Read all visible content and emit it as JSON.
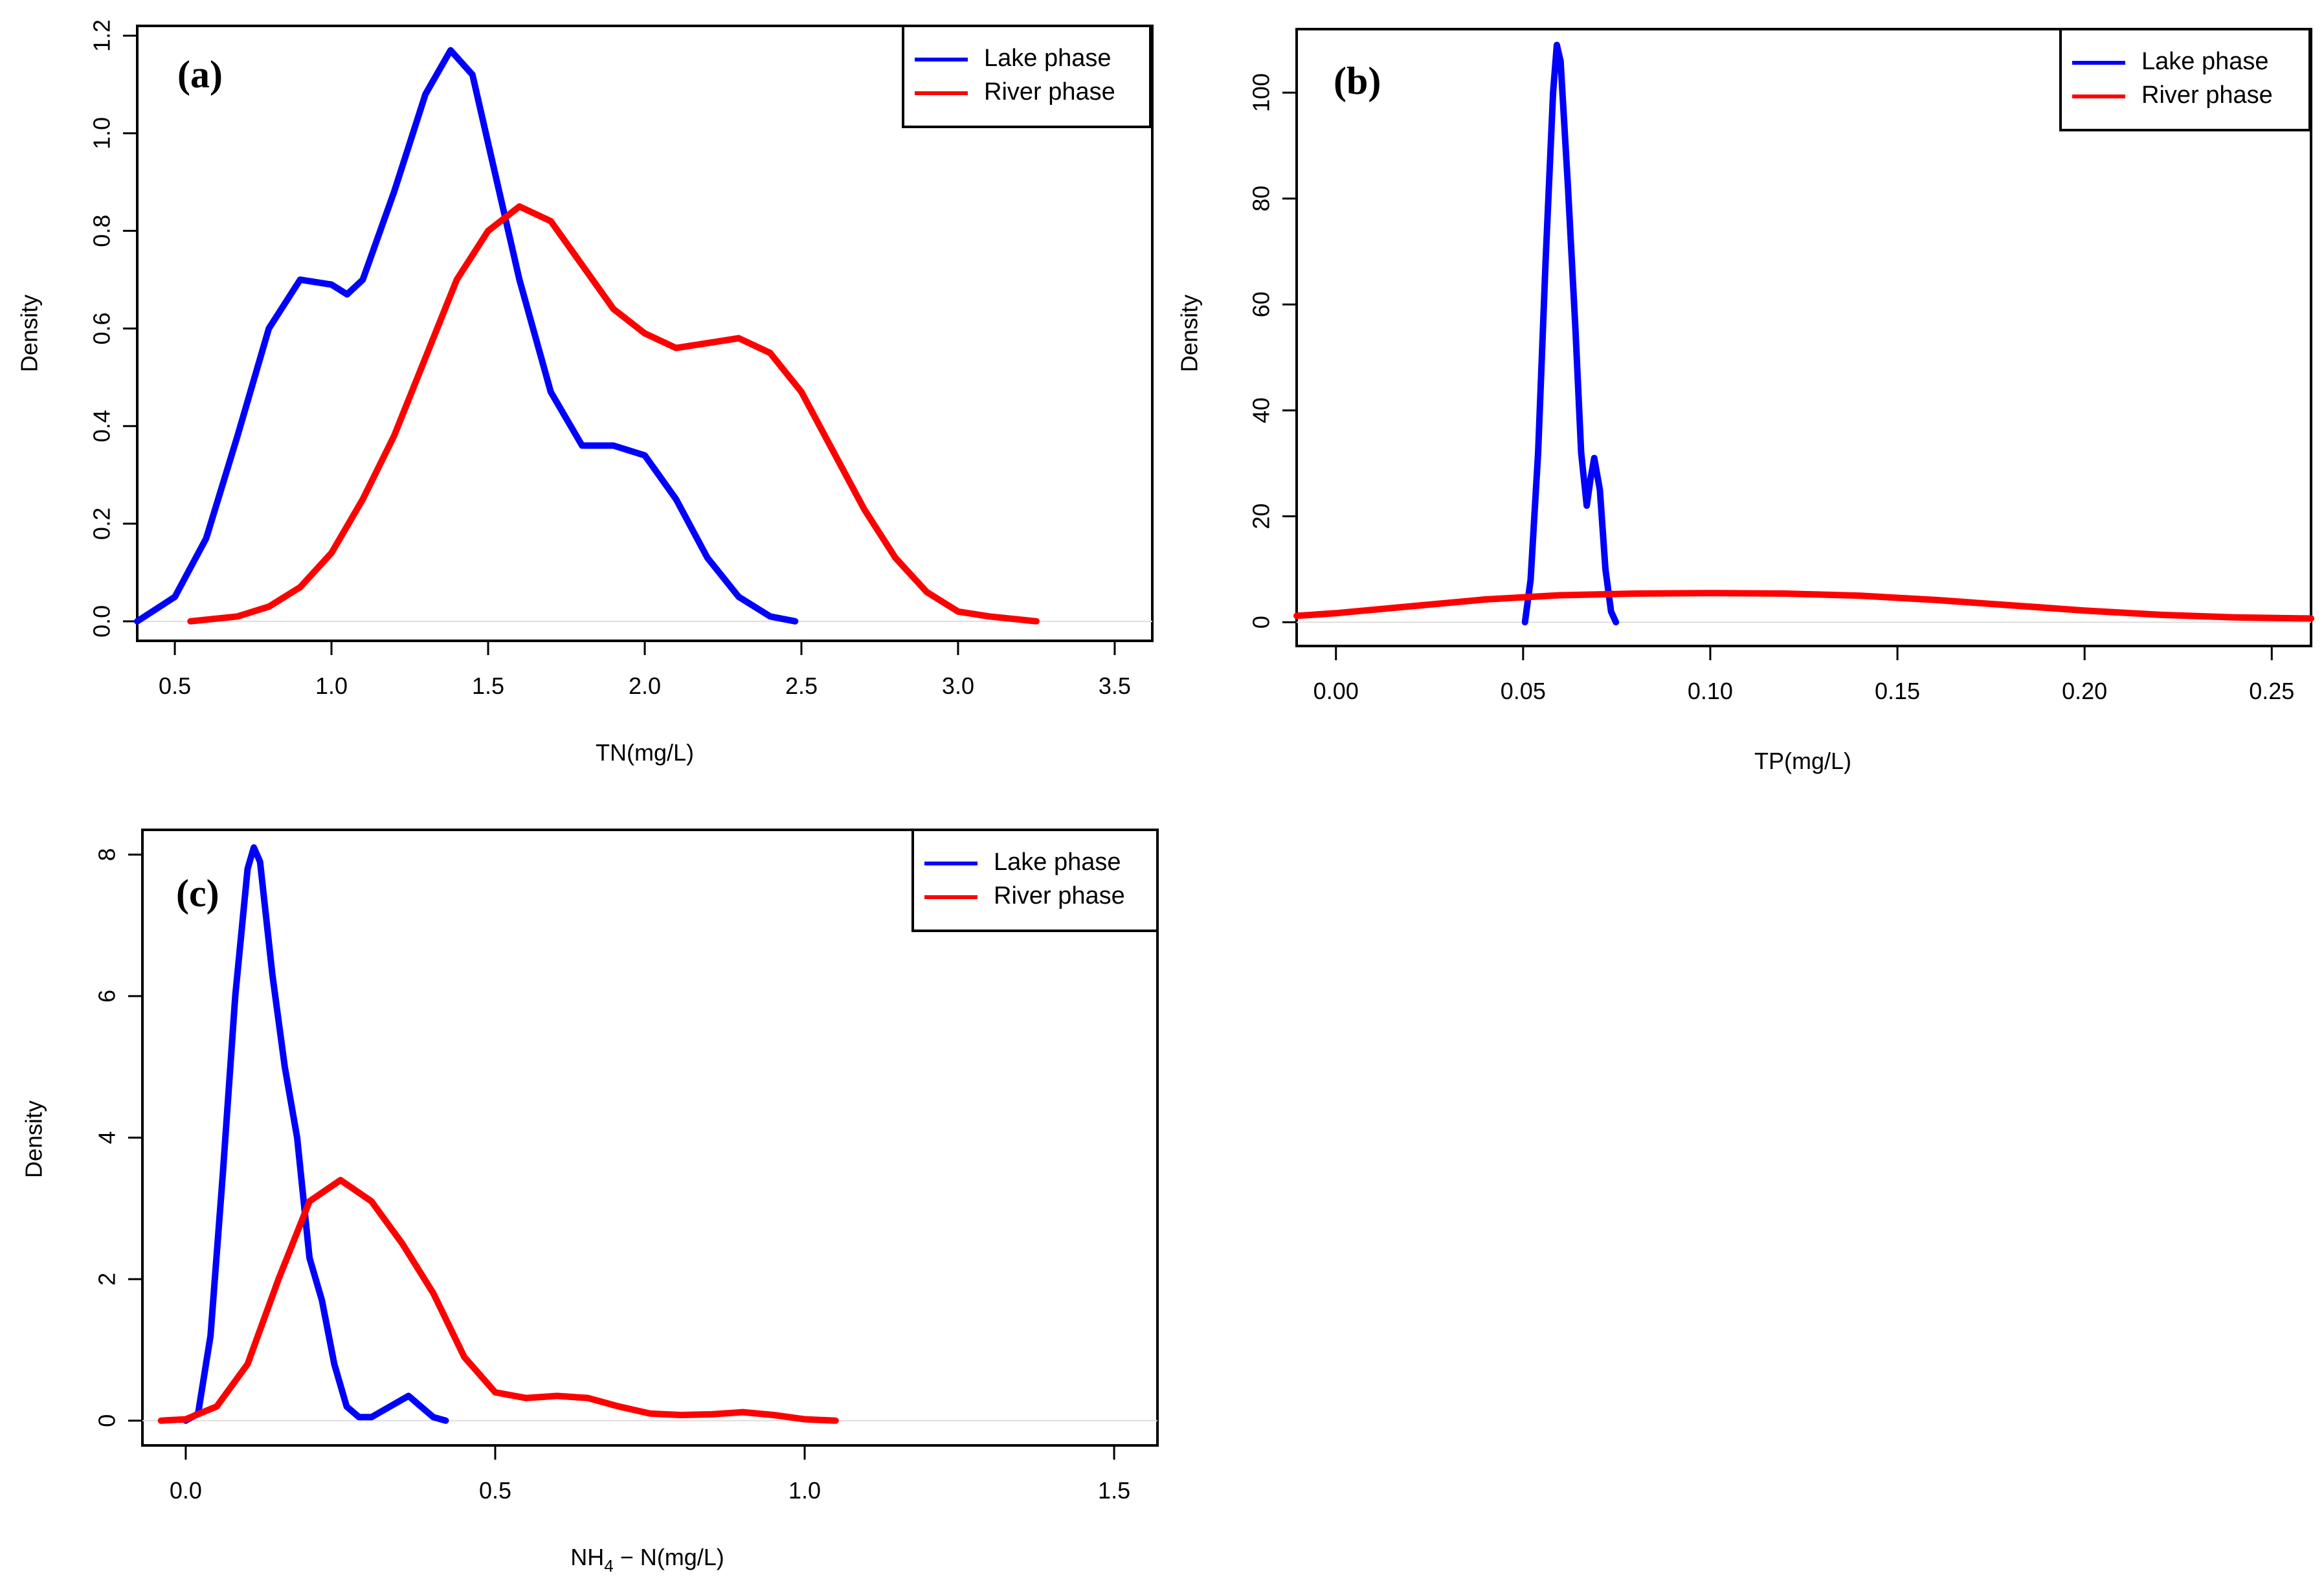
{
  "colors": {
    "lake": "#0000ff",
    "river": "#ff0000"
  },
  "chart_data": [
    {
      "type": "line",
      "panel_label": "(a)",
      "xlabel": "TN(mg/L)",
      "ylabel": "Density",
      "xlim": [
        0.38,
        3.62
      ],
      "ylim": [
        -0.04,
        1.22
      ],
      "xticks": [
        0.5,
        1.0,
        1.5,
        2.0,
        2.5,
        3.0,
        3.5
      ],
      "xtick_labels": [
        "0.5",
        "1.0",
        "1.5",
        "2.0",
        "2.5",
        "3.0",
        "3.5"
      ],
      "yticks": [
        0.0,
        0.2,
        0.4,
        0.6,
        0.8,
        1.0,
        1.2
      ],
      "ytick_labels": [
        "0.0",
        "0.2",
        "0.4",
        "0.6",
        "0.8",
        "1.0",
        "1.2"
      ],
      "legend": [
        "Lake phase",
        "River phase"
      ],
      "series": [
        {
          "name": "Lake phase",
          "color": "#0000ff",
          "points": [
            [
              0.38,
              0.0
            ],
            [
              0.5,
              0.05
            ],
            [
              0.6,
              0.17
            ],
            [
              0.7,
              0.38
            ],
            [
              0.8,
              0.6
            ],
            [
              0.9,
              0.7
            ],
            [
              1.0,
              0.69
            ],
            [
              1.05,
              0.67
            ],
            [
              1.1,
              0.7
            ],
            [
              1.2,
              0.88
            ],
            [
              1.3,
              1.08
            ],
            [
              1.38,
              1.17
            ],
            [
              1.45,
              1.12
            ],
            [
              1.5,
              0.98
            ],
            [
              1.6,
              0.7
            ],
            [
              1.7,
              0.47
            ],
            [
              1.8,
              0.36
            ],
            [
              1.9,
              0.36
            ],
            [
              2.0,
              0.34
            ],
            [
              2.1,
              0.25
            ],
            [
              2.2,
              0.13
            ],
            [
              2.3,
              0.05
            ],
            [
              2.4,
              0.01
            ],
            [
              2.48,
              0.0
            ]
          ]
        },
        {
          "name": "River phase",
          "color": "#ff0000",
          "points": [
            [
              0.55,
              0.0
            ],
            [
              0.7,
              0.01
            ],
            [
              0.8,
              0.03
            ],
            [
              0.9,
              0.07
            ],
            [
              1.0,
              0.14
            ],
            [
              1.1,
              0.25
            ],
            [
              1.2,
              0.38
            ],
            [
              1.3,
              0.54
            ],
            [
              1.4,
              0.7
            ],
            [
              1.5,
              0.8
            ],
            [
              1.6,
              0.85
            ],
            [
              1.7,
              0.82
            ],
            [
              1.8,
              0.73
            ],
            [
              1.9,
              0.64
            ],
            [
              2.0,
              0.59
            ],
            [
              2.1,
              0.56
            ],
            [
              2.2,
              0.57
            ],
            [
              2.3,
              0.58
            ],
            [
              2.4,
              0.55
            ],
            [
              2.5,
              0.47
            ],
            [
              2.6,
              0.35
            ],
            [
              2.7,
              0.23
            ],
            [
              2.8,
              0.13
            ],
            [
              2.9,
              0.06
            ],
            [
              3.0,
              0.02
            ],
            [
              3.1,
              0.01
            ],
            [
              3.25,
              0.0
            ]
          ]
        }
      ]
    },
    {
      "type": "line",
      "panel_label": "(b)",
      "xlabel": "TP(mg/L)",
      "ylabel": "Density",
      "xlim": [
        -0.0105,
        0.2605
      ],
      "ylim": [
        -4.5,
        112
      ],
      "xticks": [
        0.0,
        0.05,
        0.1,
        0.15,
        0.2,
        0.25
      ],
      "xtick_labels": [
        "0.00",
        "0.05",
        "0.10",
        "0.15",
        "0.20",
        "0.25"
      ],
      "yticks": [
        0,
        20,
        40,
        60,
        80,
        100
      ],
      "ytick_labels": [
        "0",
        "20",
        "40",
        "60",
        "80",
        "100"
      ],
      "legend": [
        "Lake phase",
        "River phase"
      ],
      "series": [
        {
          "name": "Lake phase",
          "color": "#0000ff",
          "points": [
            [
              0.0505,
              0.0
            ],
            [
              0.052,
              8
            ],
            [
              0.054,
              32
            ],
            [
              0.056,
              68
            ],
            [
              0.058,
              100
            ],
            [
              0.059,
              109
            ],
            [
              0.06,
              106
            ],
            [
              0.062,
              82
            ],
            [
              0.064,
              55
            ],
            [
              0.0655,
              32
            ],
            [
              0.067,
              22
            ],
            [
              0.068,
              27
            ],
            [
              0.069,
              31
            ],
            [
              0.0705,
              25
            ],
            [
              0.072,
              10
            ],
            [
              0.0735,
              2
            ],
            [
              0.0748,
              0.0
            ]
          ]
        },
        {
          "name": "River phase",
          "color": "#ff0000",
          "points": [
            [
              -0.0105,
              1.2
            ],
            [
              0.0,
              1.7
            ],
            [
              0.02,
              3.0
            ],
            [
              0.04,
              4.3
            ],
            [
              0.06,
              5.1
            ],
            [
              0.08,
              5.4
            ],
            [
              0.1,
              5.5
            ],
            [
              0.12,
              5.4
            ],
            [
              0.14,
              5.0
            ],
            [
              0.16,
              4.2
            ],
            [
              0.18,
              3.2
            ],
            [
              0.2,
              2.2
            ],
            [
              0.22,
              1.4
            ],
            [
              0.24,
              0.9
            ],
            [
              0.2605,
              0.7
            ]
          ]
        }
      ]
    },
    {
      "type": "line",
      "panel_label": "(c)",
      "xlabel_main": "NH",
      "xlabel_sub": "4",
      "xlabel_rest": " − N(mg/L)",
      "ylabel": "Density",
      "xlim": [
        -0.07,
        1.57
      ],
      "ylim": [
        -0.35,
        8.35
      ],
      "xticks": [
        0.0,
        0.5,
        1.0,
        1.5
      ],
      "xtick_labels": [
        "0.0",
        "0.5",
        "1.0",
        "1.5"
      ],
      "yticks": [
        0,
        2,
        4,
        6,
        8
      ],
      "ytick_labels": [
        "0",
        "2",
        "4",
        "6",
        "8"
      ],
      "legend": [
        "Lake phase",
        "River phase"
      ],
      "series": [
        {
          "name": "Lake phase",
          "color": "#0000ff",
          "points": [
            [
              0.0,
              0.0
            ],
            [
              0.02,
              0.1
            ],
            [
              0.04,
              1.2
            ],
            [
              0.06,
              3.5
            ],
            [
              0.08,
              6.0
            ],
            [
              0.1,
              7.8
            ],
            [
              0.11,
              8.1
            ],
            [
              0.12,
              7.9
            ],
            [
              0.14,
              6.3
            ],
            [
              0.16,
              5.0
            ],
            [
              0.18,
              4.0
            ],
            [
              0.2,
              2.3
            ],
            [
              0.22,
              1.7
            ],
            [
              0.24,
              0.8
            ],
            [
              0.26,
              0.2
            ],
            [
              0.28,
              0.05
            ],
            [
              0.3,
              0.05
            ],
            [
              0.33,
              0.2
            ],
            [
              0.36,
              0.35
            ],
            [
              0.38,
              0.2
            ],
            [
              0.4,
              0.05
            ],
            [
              0.42,
              0.0
            ]
          ]
        },
        {
          "name": "River phase",
          "color": "#ff0000",
          "points": [
            [
              -0.04,
              0.0
            ],
            [
              0.0,
              0.02
            ],
            [
              0.05,
              0.2
            ],
            [
              0.1,
              0.8
            ],
            [
              0.15,
              2.0
            ],
            [
              0.2,
              3.1
            ],
            [
              0.25,
              3.4
            ],
            [
              0.3,
              3.1
            ],
            [
              0.35,
              2.5
            ],
            [
              0.4,
              1.8
            ],
            [
              0.45,
              0.9
            ],
            [
              0.5,
              0.4
            ],
            [
              0.55,
              0.32
            ],
            [
              0.6,
              0.35
            ],
            [
              0.65,
              0.32
            ],
            [
              0.7,
              0.2
            ],
            [
              0.75,
              0.1
            ],
            [
              0.8,
              0.08
            ],
            [
              0.85,
              0.09
            ],
            [
              0.9,
              0.12
            ],
            [
              0.95,
              0.08
            ],
            [
              1.0,
              0.02
            ],
            [
              1.05,
              0.0
            ]
          ]
        }
      ]
    }
  ]
}
